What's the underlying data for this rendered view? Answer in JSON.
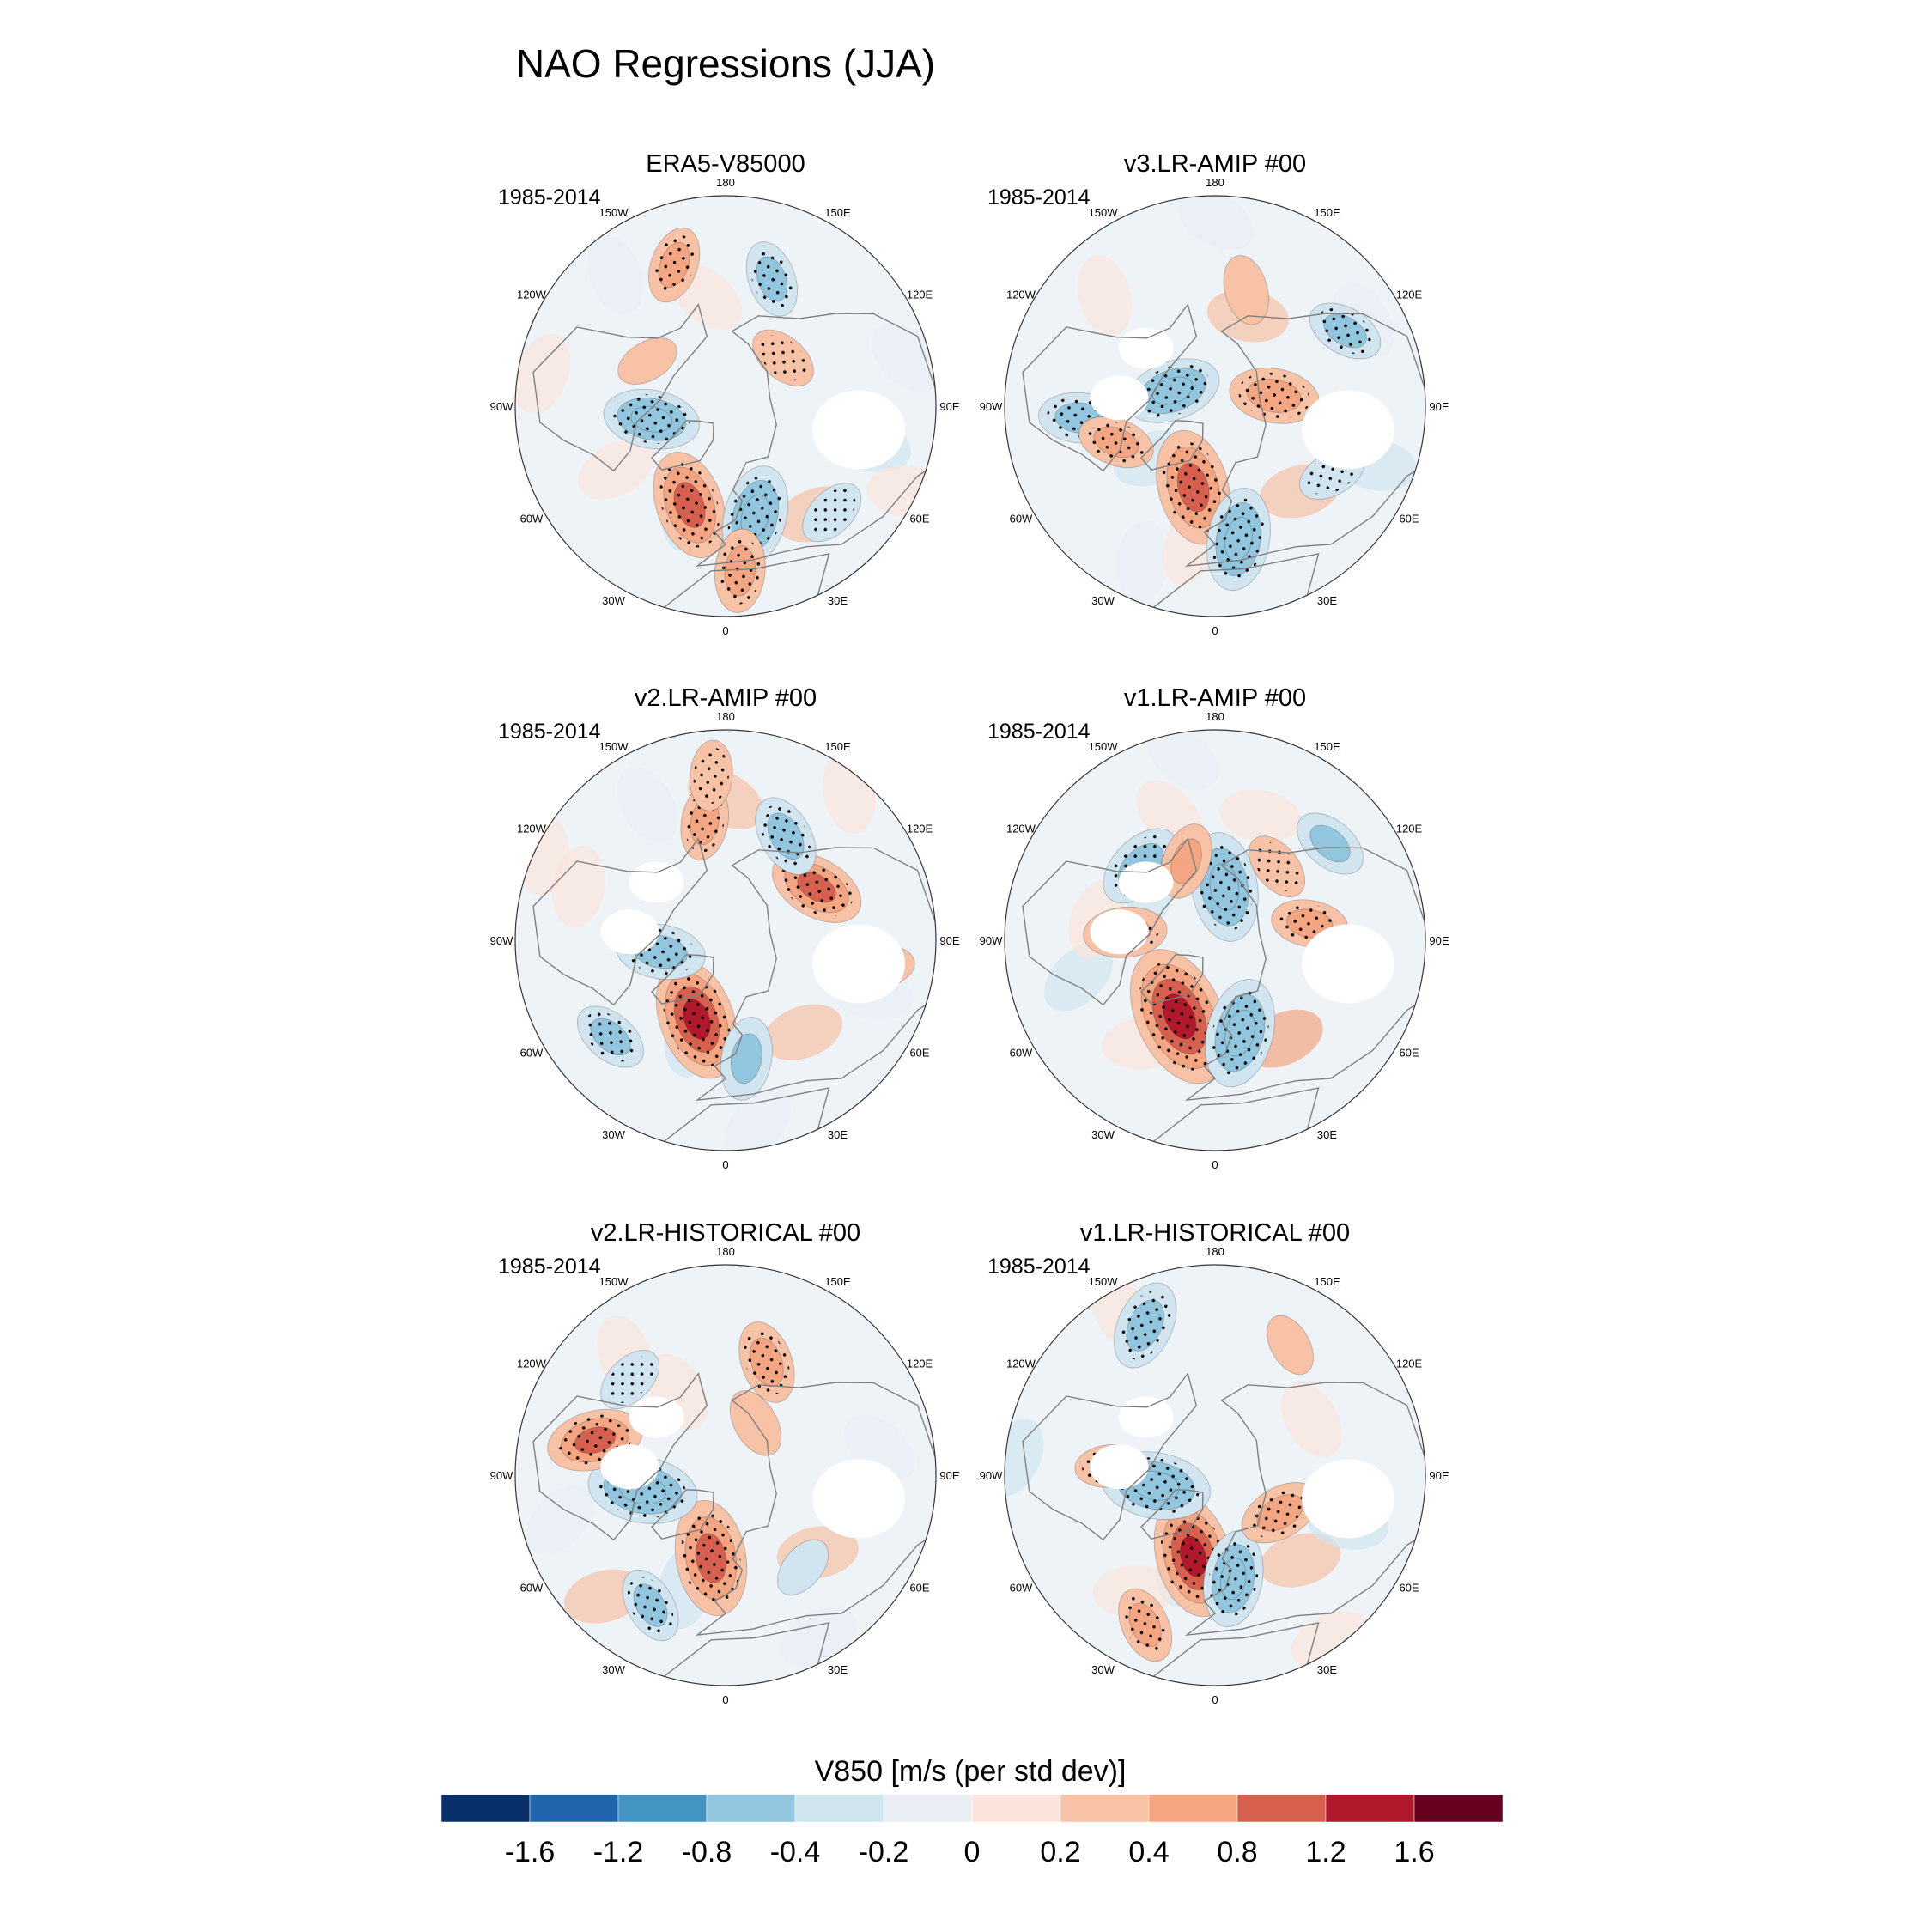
{
  "colors": {
    "scale": [
      "#08306b",
      "#2166ac",
      "#4393c3",
      "#92c5de",
      "#d1e5f0",
      "#e8eef4",
      "#fbe4dc",
      "#f7c2a6",
      "#f4a582",
      "#d6604d",
      "#b2182b",
      "#67001f"
    ],
    "coast": "#7f7f7f",
    "stipple": "#000000",
    "missing": "#ffffff"
  },
  "chart_data": {
    "type": "polar-map",
    "title": "NAO Regressions (JJA)",
    "variable": "V850",
    "period": "1985-2014",
    "colorbar": {
      "title": "V850 [m/s (per std dev)]",
      "ticks": [
        "-1.6",
        "-1.2",
        "-0.8",
        "-0.4",
        "-0.2",
        "0",
        "0.2",
        "0.4",
        "0.8",
        "1.2",
        "1.6"
      ],
      "levels": [
        -1.6,
        -1.2,
        -0.8,
        -0.4,
        -0.2,
        0,
        0.2,
        0.4,
        0.8,
        1.2,
        1.6
      ]
    },
    "longitude_labels": [
      "180",
      "150E",
      "120E",
      "90E",
      "60E",
      "30E",
      "0",
      "30W",
      "60W",
      "90W",
      "120W",
      "150W"
    ],
    "longitude_degrees": [
      180,
      150,
      120,
      90,
      60,
      30,
      0,
      -30,
      -60,
      -90,
      -120,
      -150
    ],
    "panels": [
      {
        "title": "ERA5-V85000",
        "period": "1985-2014",
        "anomalies": [
          {
            "lon": -20,
            "lat": 55,
            "value": 1.0,
            "sig": true
          },
          {
            "lon": 15,
            "lat": 52,
            "value": -0.9,
            "sig": true
          },
          {
            "lon": -80,
            "lat": 65,
            "value": -0.8,
            "sig": true
          },
          {
            "lon": 5,
            "lat": 35,
            "value": 0.6,
            "sig": true
          },
          {
            "lon": 160,
            "lat": 45,
            "value": -0.5,
            "sig": true
          },
          {
            "lon": -160,
            "lat": 40,
            "value": 0.5,
            "sig": true
          },
          {
            "lon": 130,
            "lat": 65,
            "value": 0.4,
            "sig": true
          },
          {
            "lon": 45,
            "lat": 40,
            "value": -0.4,
            "sig": true
          },
          {
            "lon": -120,
            "lat": 60,
            "value": 0.3,
            "sig": false
          }
        ]
      },
      {
        "title": "v3.LR-AMIP  #00",
        "period": "1985-2014",
        "anomalies": [
          {
            "lon": -15,
            "lat": 62,
            "value": 1.1,
            "sig": true
          },
          {
            "lon": 10,
            "lat": 45,
            "value": -0.9,
            "sig": true
          },
          {
            "lon": -110,
            "lat": 75,
            "value": -0.8,
            "sig": true
          },
          {
            "lon": 100,
            "lat": 70,
            "value": 0.7,
            "sig": true
          },
          {
            "lon": -85,
            "lat": 45,
            "value": -0.6,
            "sig": true
          },
          {
            "lon": -70,
            "lat": 55,
            "value": 0.5,
            "sig": true
          },
          {
            "lon": 120,
            "lat": 40,
            "value": -0.5,
            "sig": true
          },
          {
            "lon": 60,
            "lat": 45,
            "value": -0.4,
            "sig": true
          },
          {
            "lon": 165,
            "lat": 50,
            "value": 0.4,
            "sig": false
          }
        ]
      },
      {
        "title": "v2.LR-AMIP  #00",
        "period": "1985-2014",
        "anomalies": [
          {
            "lon": -20,
            "lat": 62,
            "value": 1.2,
            "sig": true
          },
          {
            "lon": 120,
            "lat": 55,
            "value": 0.8,
            "sig": true
          },
          {
            "lon": 150,
            "lat": 50,
            "value": -0.6,
            "sig": true
          },
          {
            "lon": -80,
            "lat": 68,
            "value": -0.7,
            "sig": true
          },
          {
            "lon": -170,
            "lat": 50,
            "value": 0.5,
            "sig": true
          },
          {
            "lon": -175,
            "lat": 35,
            "value": 0.4,
            "sig": true
          },
          {
            "lon": -50,
            "lat": 40,
            "value": -0.5,
            "sig": true
          },
          {
            "lon": 10,
            "lat": 50,
            "value": -0.6,
            "sig": false
          },
          {
            "lon": 80,
            "lat": 38,
            "value": 0.4,
            "sig": false
          }
        ]
      },
      {
        "title": "v1.LR-AMIP  #00",
        "period": "1985-2014",
        "anomalies": [
          {
            "lon": -25,
            "lat": 62,
            "value": 1.5,
            "sig": true
          },
          {
            "lon": 15,
            "lat": 58,
            "value": -1.0,
            "sig": true
          },
          {
            "lon": 170,
            "lat": 72,
            "value": -1.0,
            "sig": true
          },
          {
            "lon": -135,
            "lat": 55,
            "value": -0.7,
            "sig": true
          },
          {
            "lon": -95,
            "lat": 60,
            "value": 0.6,
            "sig": true
          },
          {
            "lon": 100,
            "lat": 58,
            "value": 0.5,
            "sig": true
          },
          {
            "lon": 130,
            "lat": 40,
            "value": -0.5,
            "sig": false
          },
          {
            "lon": -160,
            "lat": 62,
            "value": 0.5,
            "sig": false
          },
          {
            "lon": 140,
            "lat": 58,
            "value": 0.4,
            "sig": true
          }
        ]
      },
      {
        "title": "v2.LR-HISTORICAL  #00",
        "period": "1985-2014",
        "anomalies": [
          {
            "lon": -10,
            "lat": 62,
            "value": 1.1,
            "sig": true
          },
          {
            "lon": -80,
            "lat": 62,
            "value": -1.0,
            "sig": true
          },
          {
            "lon": -105,
            "lat": 45,
            "value": 0.8,
            "sig": true
          },
          {
            "lon": 160,
            "lat": 50,
            "value": 0.6,
            "sig": true
          },
          {
            "lon": -135,
            "lat": 45,
            "value": -0.4,
            "sig": true
          },
          {
            "lon": -30,
            "lat": 40,
            "value": -0.5,
            "sig": true
          },
          {
            "lon": 150,
            "lat": 70,
            "value": 0.4,
            "sig": false
          },
          {
            "lon": 40,
            "lat": 50,
            "value": -0.3,
            "sig": false
          }
        ]
      },
      {
        "title": "v1.LR-HISTORICAL  #00",
        "period": "1985-2014",
        "anomalies": [
          {
            "lon": -15,
            "lat": 62,
            "value": 1.2,
            "sig": true
          },
          {
            "lon": 10,
            "lat": 55,
            "value": -0.8,
            "sig": true
          },
          {
            "lon": -80,
            "lat": 70,
            "value": -1.0,
            "sig": true
          },
          {
            "lon": -155,
            "lat": 35,
            "value": -0.7,
            "sig": true
          },
          {
            "lon": 60,
            "lat": 65,
            "value": 0.6,
            "sig": true
          },
          {
            "lon": -95,
            "lat": 55,
            "value": 0.4,
            "sig": true
          },
          {
            "lon": -25,
            "lat": 35,
            "value": 0.5,
            "sig": true
          },
          {
            "lon": 150,
            "lat": 40,
            "value": 0.3,
            "sig": false
          }
        ]
      }
    ]
  }
}
